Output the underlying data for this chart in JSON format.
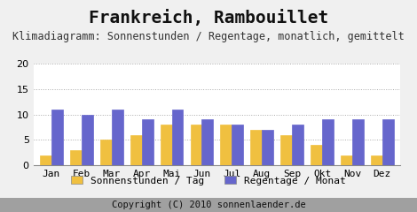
{
  "title": "Frankreich, Rambouillet",
  "subtitle": "Klimadiagramm: Sonnenstunden / Regentage, monatlich, gemittelt",
  "months": [
    "Jan",
    "Feb",
    "Mar",
    "Apr",
    "Mai",
    "Jun",
    "Jul",
    "Aug",
    "Sep",
    "Okt",
    "Nov",
    "Dez"
  ],
  "sonnenstunden": [
    2,
    3,
    5,
    6,
    8,
    8,
    8,
    7,
    6,
    4,
    2,
    2
  ],
  "regentage": [
    11,
    10,
    11,
    9,
    11,
    9,
    8,
    7,
    8,
    9,
    9,
    9
  ],
  "color_sonnen": "#f0c040",
  "color_regen": "#6666cc",
  "ylim": [
    0,
    20
  ],
  "yticks": [
    0,
    5,
    10,
    15,
    20
  ],
  "legend_sonnen": "Sonnenstunden / Tag",
  "legend_regen": "Regentage / Monat",
  "copyright": "Copyright (C) 2010 sonnenlaender.de",
  "bg_color": "#f0f0f0",
  "plot_bg_color": "#ffffff",
  "footer_bg": "#a0a0a0",
  "title_fontsize": 14,
  "subtitle_fontsize": 8.5,
  "axis_fontsize": 8,
  "legend_fontsize": 8,
  "copyright_fontsize": 7.5
}
